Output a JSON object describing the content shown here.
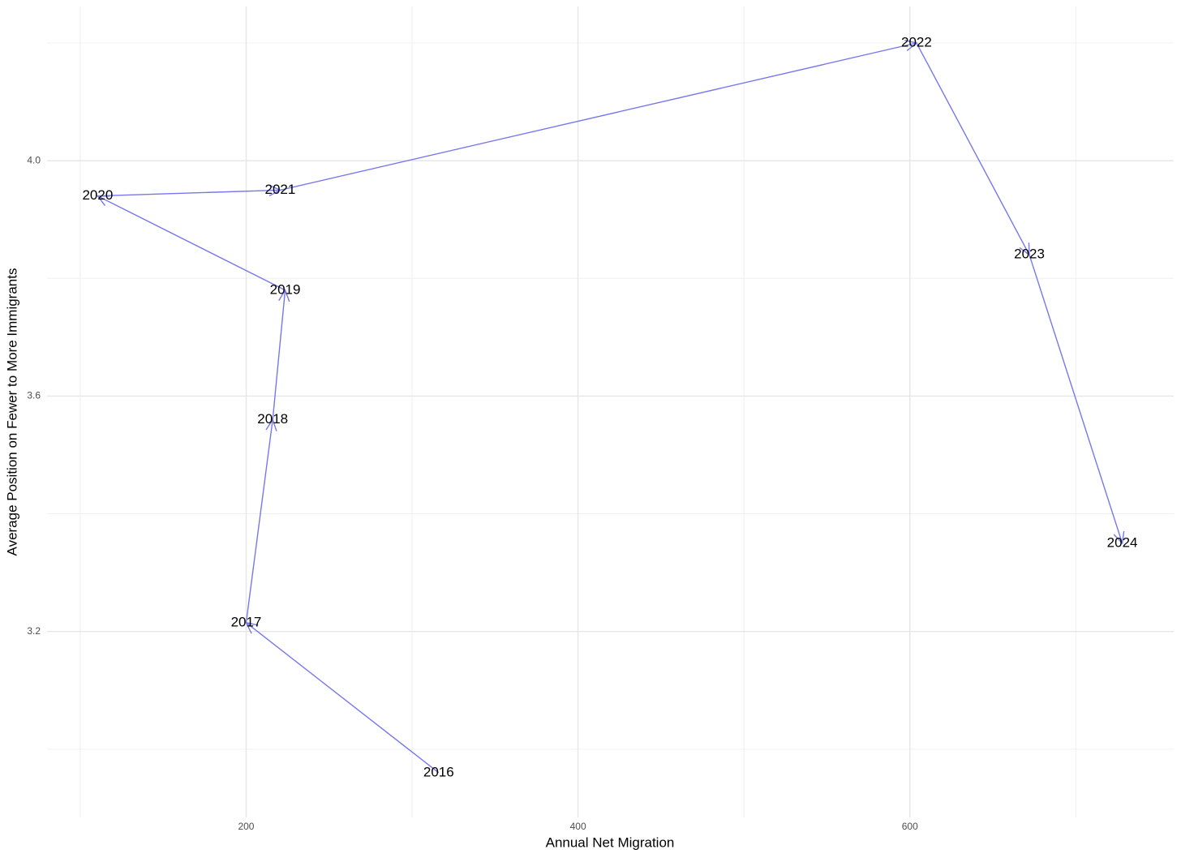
{
  "chart_data": {
    "type": "connected-scatter",
    "x_label": "Annual Net Migration",
    "y_label": "Average Position on Fewer to More Immigrants",
    "x": [
      316,
      200,
      216,
      223.5,
      110.5,
      220.5,
      604,
      672,
      728
    ],
    "values": [
      2.96,
      3.215,
      3.56,
      3.78,
      3.94,
      3.95,
      4.2,
      3.84,
      3.35
    ],
    "labels": [
      "2016",
      "2017",
      "2018",
      "2019",
      "2020",
      "2021",
      "2022",
      "2023",
      "2024"
    ],
    "color": "#7777ee",
    "xlim": [
      80,
      759
    ],
    "ylim": [
      2.884,
      4.262
    ],
    "xticks": [
      200,
      400,
      600
    ],
    "yticks": [
      3.2,
      3.6,
      {
        "value": 4,
        "label": "4.0"
      }
    ],
    "xminor": [
      100,
      300,
      500,
      700
    ],
    "yminor": [
      3.0,
      3.4,
      3.8,
      4.2
    ],
    "grid": true
  }
}
